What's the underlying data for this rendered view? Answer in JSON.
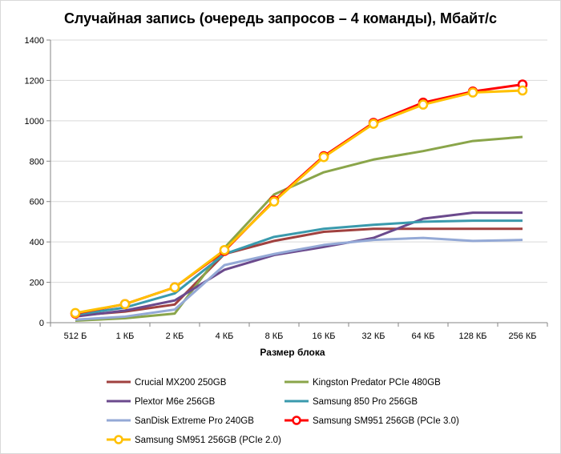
{
  "chart_data": {
    "type": "line",
    "title": "Случайная запись (очередь запросов – 4 команды), Мбайт/с",
    "xlabel": "Размер блока",
    "ylabel": "",
    "categories": [
      "512 Б",
      "1 КБ",
      "2 КБ",
      "4 КБ",
      "8 КБ",
      "16 КБ",
      "32 КБ",
      "64 КБ",
      "128 КБ",
      "256 КБ"
    ],
    "ylim": [
      0,
      1400
    ],
    "yticks": [
      0,
      200,
      400,
      600,
      800,
      1000,
      1200,
      1400
    ],
    "grid": "horizontal",
    "legend_position": "bottom",
    "series": [
      {
        "name": "Crucial MX200 250GB",
        "color": "#a0413f",
        "marker": false,
        "values": [
          35,
          55,
          90,
          340,
          405,
          450,
          465,
          465,
          465,
          465
        ]
      },
      {
        "name": "Kingston Predator PCIe 480GB",
        "color": "#8aa54a",
        "marker": false,
        "values": [
          10,
          22,
          45,
          370,
          635,
          745,
          808,
          850,
          900,
          920
        ]
      },
      {
        "name": "Plextor M6e 256GB",
        "color": "#6b4a8d",
        "marker": false,
        "values": [
          30,
          60,
          110,
          262,
          335,
          375,
          420,
          515,
          545,
          545
        ]
      },
      {
        "name": "Samsung 850 Pro 256GB",
        "color": "#3a9aad",
        "marker": false,
        "values": [
          40,
          75,
          145,
          340,
          425,
          465,
          485,
          500,
          505,
          505
        ]
      },
      {
        "name": "SanDisk Extreme Pro 240GB",
        "color": "#94a9d6",
        "marker": false,
        "values": [
          15,
          30,
          65,
          285,
          340,
          385,
          410,
          420,
          405,
          410
        ]
      },
      {
        "name": "Samsung SM951 256GB (PCIe 3.0)",
        "color": "#ff0000",
        "marker": true,
        "values": [
          45,
          92,
          175,
          355,
          605,
          825,
          990,
          1090,
          1145,
          1180
        ]
      },
      {
        "name": "Samsung SM951 256GB (PCIe 2.0)",
        "color": "#ffc000",
        "marker": true,
        "values": [
          48,
          92,
          175,
          360,
          600,
          820,
          985,
          1080,
          1140,
          1150
        ]
      }
    ]
  }
}
